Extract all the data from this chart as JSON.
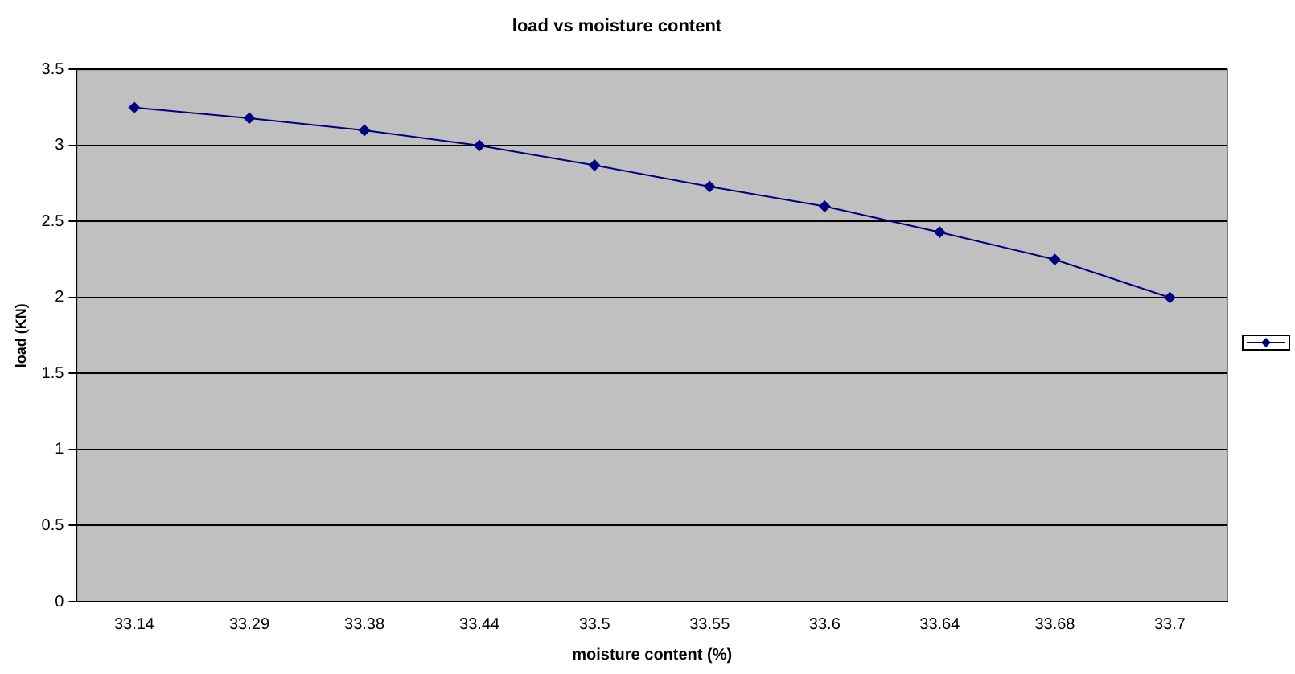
{
  "chart_data": {
    "type": "line",
    "title": "load vs moisture content",
    "xlabel": "moisture content (%)",
    "ylabel": "load (KN)",
    "categories": [
      "33.14",
      "33.29",
      "33.38",
      "33.44",
      "33.5",
      "33.55",
      "33.6",
      "33.64",
      "33.68",
      "33.7"
    ],
    "series": [
      {
        "color": "#000080",
        "values": [
          3.25,
          3.18,
          3.1,
          3.0,
          2.87,
          2.73,
          2.6,
          2.43,
          2.25,
          2.0
        ]
      }
    ],
    "ylim": [
      0,
      3.5
    ],
    "yticks": [
      0,
      0.5,
      1,
      1.5,
      2,
      2.5,
      3,
      3.5
    ],
    "grid": "y",
    "marker": "diamond",
    "line_style": "solid"
  }
}
